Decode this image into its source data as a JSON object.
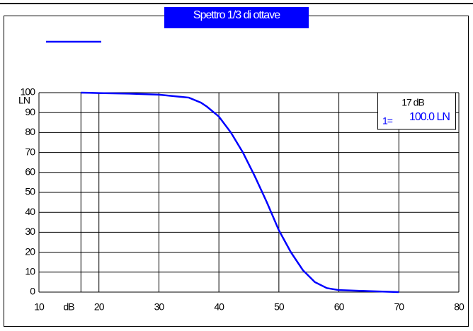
{
  "chart_data": {
    "type": "line",
    "title": "Spettro 1/3 di ottave",
    "x_label": "dB",
    "y_label": "LN",
    "x": [
      17,
      20,
      25,
      30,
      35,
      37,
      38,
      40,
      42,
      44,
      46,
      48,
      50,
      52,
      54,
      56,
      58,
      60,
      65,
      70
    ],
    "series": [
      {
        "color": "#0000ff",
        "values": [
          100,
          99.8,
          99.5,
          99,
          97.5,
          95,
          93,
          88,
          80,
          70,
          58,
          45,
          31,
          20,
          11,
          5,
          2,
          1,
          0.5,
          0
        ]
      }
    ],
    "xlim": [
      10,
      80
    ],
    "xticks": [
      10,
      20,
      30,
      40,
      50,
      60,
      70,
      80
    ],
    "ylim": [
      0,
      100
    ],
    "yticks": [
      0,
      10,
      20,
      30,
      40,
      50,
      60,
      70,
      80,
      90,
      100
    ],
    "grid": true,
    "cursor": {
      "x": 17,
      "x_text": "17 dB",
      "index_text": "1=",
      "value_text": "100.0 LN"
    }
  }
}
